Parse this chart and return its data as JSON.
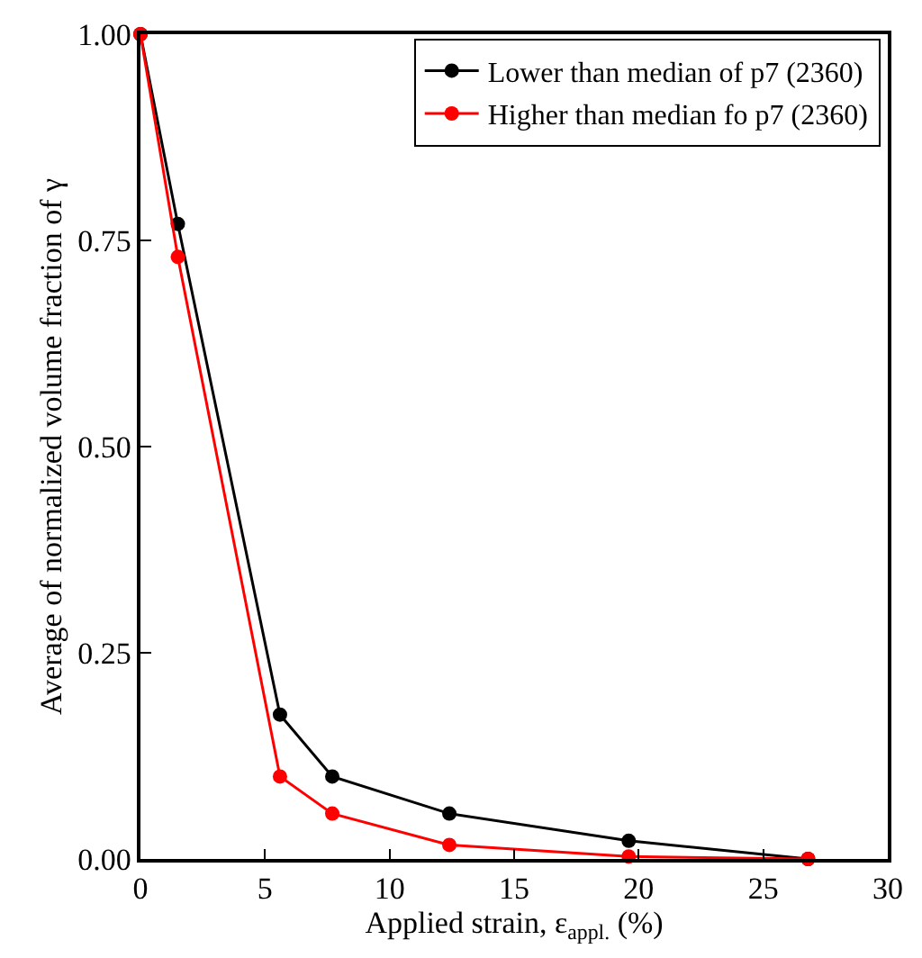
{
  "chart_data": {
    "type": "line",
    "xlabel": "Applied strain, ε$_{appl.}$ (%)",
    "ylabel": "Average of normalized volume fraction of γ",
    "x": [
      0,
      1.5,
      5.6,
      7.7,
      12.4,
      19.6,
      26.8
    ],
    "series": [
      {
        "name": "Lower than median of p7 (2360)",
        "color": "#000000",
        "values": [
          1.0,
          0.77,
          0.175,
          0.1,
          0.055,
          0.022,
          0.0
        ]
      },
      {
        "name": "Higher than median fo p7 (2360)",
        "color": "#ff0000",
        "values": [
          1.0,
          0.73,
          0.1,
          0.055,
          0.017,
          0.003,
          0.0
        ]
      }
    ],
    "xlim": [
      0,
      30
    ],
    "xticks": [
      0,
      5,
      10,
      15,
      20,
      25,
      30
    ],
    "ylim": [
      0,
      1
    ],
    "yticks": [
      {
        "value": 0,
        "label": "0.00"
      },
      {
        "value": 0.25,
        "label": "0.25"
      },
      {
        "value": 0.5,
        "label": "0.50"
      },
      {
        "value": 0.75,
        "label": "0.75"
      },
      {
        "value": 1,
        "label": "1.00"
      }
    ],
    "legend": "top right",
    "marker": "circle",
    "line_style": "solid"
  }
}
